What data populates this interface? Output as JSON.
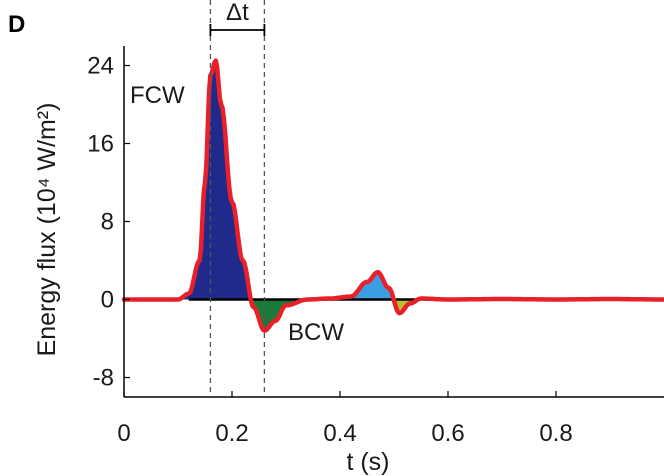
{
  "chart_data": {
    "type": "area",
    "panel_label": "D",
    "title": "",
    "xlabel": "t (s)",
    "ylabel": "Energy flux (10⁴ W/m²)",
    "xlim": [
      0,
      1.0
    ],
    "ylim": [
      -10,
      26
    ],
    "xticks": [
      0,
      0.2,
      0.4,
      0.6,
      0.8
    ],
    "xtick_labels": [
      "0",
      "0.2",
      "0.4",
      "0.6",
      "0.8"
    ],
    "yticks": [
      -8,
      0,
      8,
      16,
      24
    ],
    "ytick_labels": [
      "-8",
      "0",
      "8",
      "16",
      "24"
    ],
    "grid": false,
    "series": [
      {
        "color": "#e8202a",
        "x": [
          0.0,
          0.1,
          0.12,
          0.14,
          0.15,
          0.16,
          0.17,
          0.18,
          0.2,
          0.22,
          0.24,
          0.26,
          0.28,
          0.3,
          0.34,
          0.38,
          0.42,
          0.45,
          0.47,
          0.49,
          0.51,
          0.53,
          0.55,
          0.6,
          0.7,
          0.8,
          0.9,
          1.0
        ],
        "y": [
          0,
          0,
          0.6,
          4,
          12,
          23,
          24.5,
          20,
          10,
          4,
          -0.8,
          -3.2,
          -2.2,
          -0.6,
          0,
          0.1,
          0.3,
          1.8,
          2.8,
          1.2,
          -1.4,
          -0.4,
          0.1,
          0,
          0.05,
          0,
          0.05,
          0
        ]
      }
    ],
    "fills": [
      {
        "name": "FCW",
        "color": "#1f2a8a",
        "x_range": [
          0.1,
          0.24
        ]
      },
      {
        "name": "BCW",
        "color": "#1a7a3a",
        "x_range": [
          0.24,
          0.34
        ]
      },
      {
        "color": "#3a9ee0",
        "x_range": [
          0.42,
          0.5
        ]
      },
      {
        "color": "#b8c030",
        "x_range": [
          0.5,
          0.54
        ]
      }
    ],
    "annotations": [
      {
        "text": "FCW",
        "x": 0.08,
        "y": 20
      },
      {
        "text": "BCW",
        "x": 0.3,
        "y": -3
      },
      {
        "text": "Δt",
        "x": 0.21,
        "y": 27
      }
    ],
    "markers": {
      "dashed_vlines": [
        0.16,
        0.26
      ],
      "dt_label": "Δt"
    }
  }
}
